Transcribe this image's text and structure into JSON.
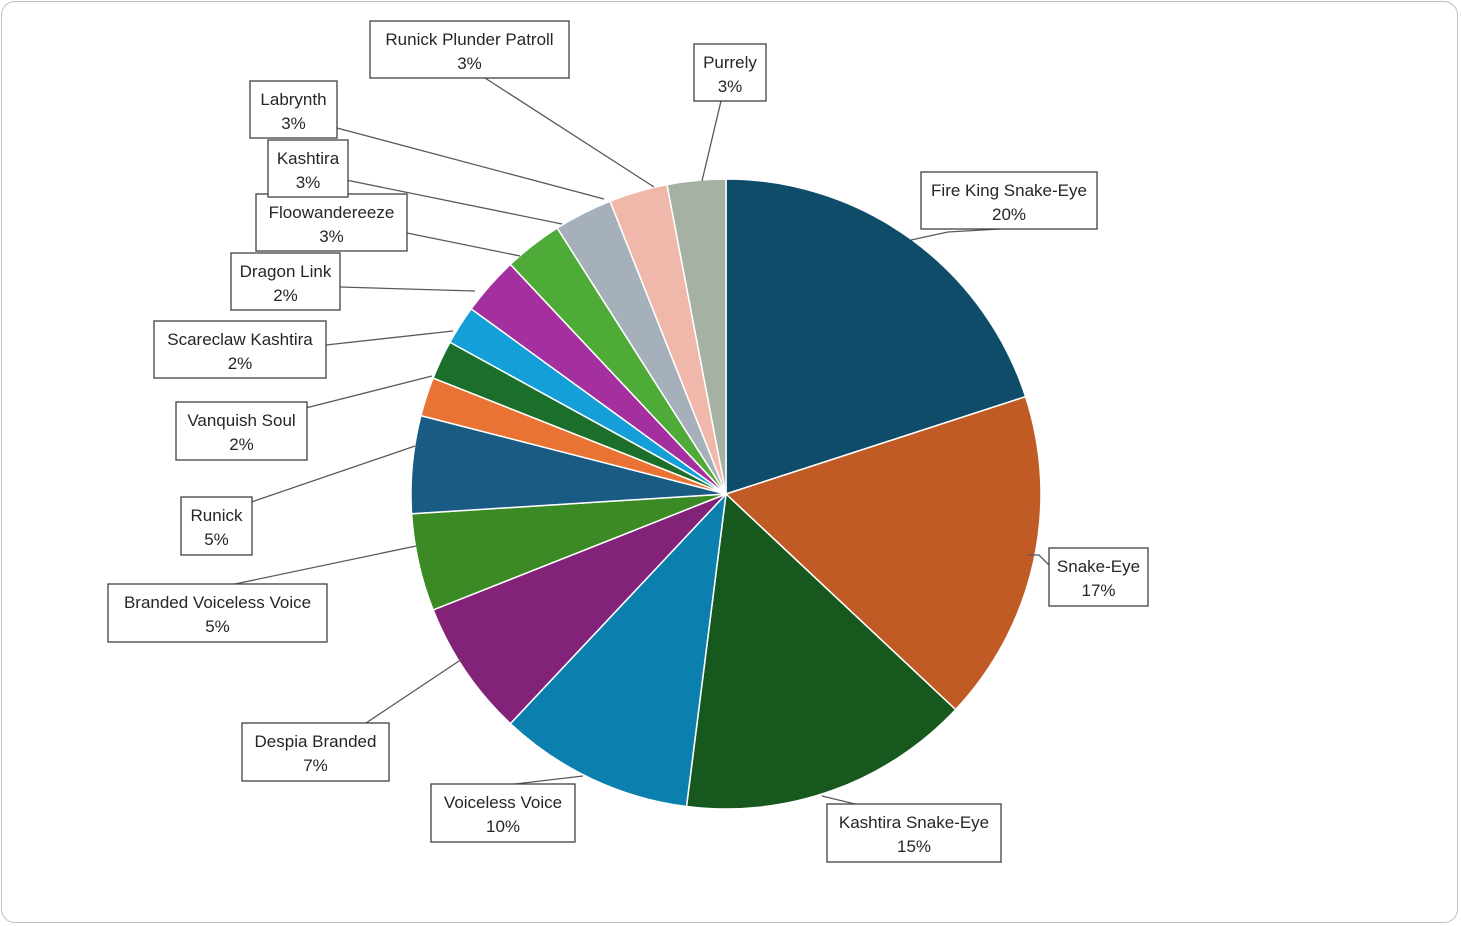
{
  "chart_data": {
    "type": "pie",
    "title": "",
    "start": "top, clockwise",
    "slices": [
      {
        "name": "Fire King Snake-Eye",
        "value": 20,
        "label": "20%",
        "color": "#0f4c6a"
      },
      {
        "name": "Snake-Eye",
        "value": 17,
        "label": "17%",
        "color": "#c05b26"
      },
      {
        "name": "Kashtira Snake-Eye",
        "value": 15,
        "label": "15%",
        "color": "#16581e"
      },
      {
        "name": "Voiceless Voice",
        "value": 10,
        "label": "10%",
        "color": "#0b80ae"
      },
      {
        "name": "Despia Branded",
        "value": 7,
        "label": "7%",
        "color": "#822278"
      },
      {
        "name": "Branded Voiceless Voice",
        "value": 5,
        "label": "5%",
        "color": "#3b8a25"
      },
      {
        "name": "Runick",
        "value": 5,
        "label": "5%",
        "color": "#195b83"
      },
      {
        "name": "Vanquish Soul",
        "value": 2,
        "label": "2%",
        "color": "#e87334"
      },
      {
        "name": "Scareclaw Kashtira",
        "value": 2,
        "label": "2%",
        "color": "#1b6f2b"
      },
      {
        "name": "Dragon Link",
        "value": 2,
        "label": "2%",
        "color": "#159fd9"
      },
      {
        "name": "Floowandereeze",
        "value": 3,
        "label": "3%",
        "color": "#a3309e"
      },
      {
        "name": "Kashtira",
        "value": 3,
        "label": "3%",
        "color": "#4eab37"
      },
      {
        "name": "Labrynth",
        "value": 3,
        "label": "3%",
        "color": "#a6b0ba"
      },
      {
        "name": "Runick Plunder Patroll",
        "value": 3,
        "label": "3%",
        "color": "#efb8aa"
      },
      {
        "name": "Purrely",
        "value": 3,
        "label": "3%",
        "color": "#a5b1a2"
      }
    ],
    "legend": "none",
    "data_labels": "callouts with category name and percentage"
  }
}
